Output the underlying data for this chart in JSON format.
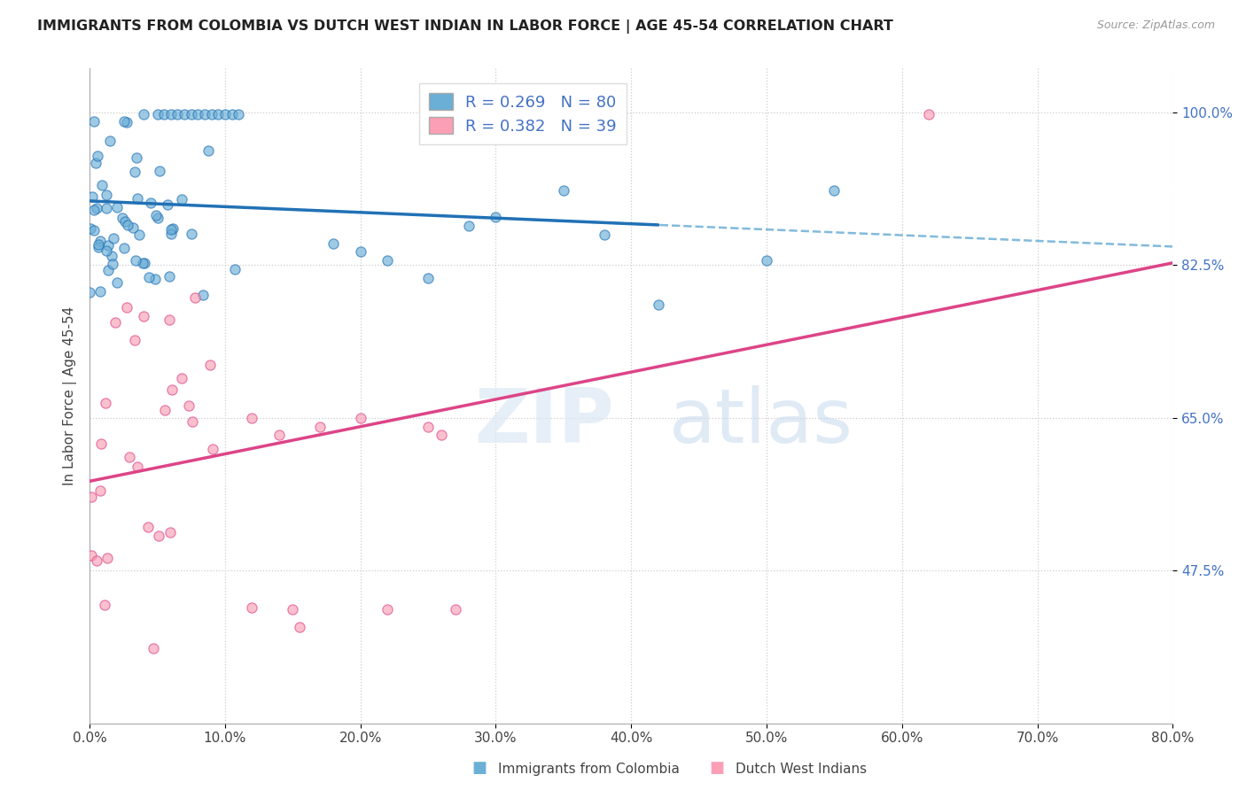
{
  "title": "IMMIGRANTS FROM COLOMBIA VS DUTCH WEST INDIAN IN LABOR FORCE | AGE 45-54 CORRELATION CHART",
  "source": "Source: ZipAtlas.com",
  "ylabel": "In Labor Force | Age 45-54",
  "ytick_labels": [
    "100.0%",
    "82.5%",
    "65.0%",
    "47.5%"
  ],
  "ytick_values": [
    1.0,
    0.825,
    0.65,
    0.475
  ],
  "xlim": [
    0.0,
    0.8
  ],
  "ylim": [
    0.3,
    1.05
  ],
  "colombia_color": "#6baed6",
  "colombia_color_dark": "#2171b5",
  "dwi_color": "#fa9fb5",
  "dwi_color_dark": "#dd4488",
  "legend_label_colombia": "R = 0.269   N = 80",
  "legend_label_dwi": "R = 0.382   N = 39",
  "bottom_legend_colombia": "Immigrants from Colombia",
  "bottom_legend_dwi": "Dutch West Indians",
  "xtick_vals": [
    0.0,
    0.1,
    0.2,
    0.3,
    0.4,
    0.5,
    0.6,
    0.7,
    0.8
  ],
  "xtick_labels": [
    "0.0%",
    "10.0%",
    "20.0%",
    "30.0%",
    "40.0%",
    "50.0%",
    "60.0%",
    "70.0%",
    "80.0%"
  ]
}
